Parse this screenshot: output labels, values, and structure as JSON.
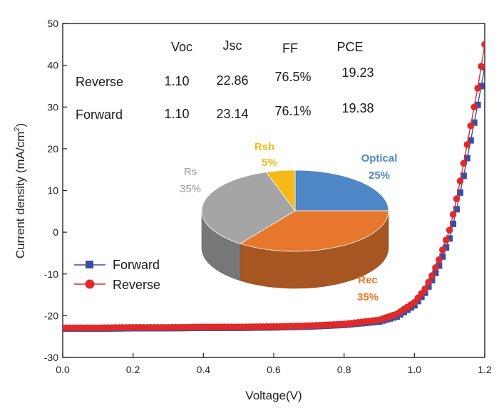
{
  "chart_data": [
    {
      "type": "scatter",
      "xlabel": "Voltage(V)",
      "ylabel_main": "Current density (mA/cm",
      "ylabel_sup": "2",
      "ylabel_close": ")",
      "xlim": [
        0.0,
        1.2
      ],
      "ylim": [
        -30,
        50
      ],
      "xticks": [
        "0.0",
        "0.2",
        "0.4",
        "0.6",
        "0.8",
        "1.0",
        "1.2"
      ],
      "yticks": [
        "-30",
        "-20",
        "-10",
        "0",
        "10",
        "20",
        "30",
        "40",
        "50"
      ],
      "grid": false,
      "legend_position": "bottom-left",
      "series": [
        {
          "name": "Forward",
          "color": "#3c4ea0",
          "marker": "square",
          "jsc": 23.14,
          "voc": 1.1,
          "points": [
            [
              0.0,
              -23.1
            ],
            [
              0.1,
              -23.1
            ],
            [
              0.2,
              -23.0
            ],
            [
              0.3,
              -23.0
            ],
            [
              0.4,
              -22.9
            ],
            [
              0.5,
              -22.9
            ],
            [
              0.6,
              -22.8
            ],
            [
              0.7,
              -22.6
            ],
            [
              0.8,
              -22.2
            ],
            [
              0.9,
              -21.4
            ],
            [
              0.95,
              -20.2
            ],
            [
              1.0,
              -17.5
            ],
            [
              1.03,
              -14.5
            ],
            [
              1.05,
              -11.5
            ],
            [
              1.07,
              -8.0
            ],
            [
              1.1,
              -1.5
            ],
            [
              1.12,
              5.5
            ],
            [
              1.14,
              13.5
            ],
            [
              1.16,
              22.0
            ],
            [
              1.18,
              30.5
            ],
            [
              1.2,
              39.5
            ]
          ]
        },
        {
          "name": "Reverse",
          "color": "#e02a2a",
          "marker": "circle",
          "jsc": 22.86,
          "voc": 1.1,
          "points": [
            [
              0.0,
              -22.9
            ],
            [
              0.1,
              -22.9
            ],
            [
              0.2,
              -22.8
            ],
            [
              0.3,
              -22.8
            ],
            [
              0.4,
              -22.7
            ],
            [
              0.5,
              -22.7
            ],
            [
              0.6,
              -22.6
            ],
            [
              0.7,
              -22.4
            ],
            [
              0.8,
              -22.0
            ],
            [
              0.9,
              -21.0
            ],
            [
              0.95,
              -19.6
            ],
            [
              1.0,
              -16.8
            ],
            [
              1.03,
              -13.6
            ],
            [
              1.05,
              -10.4
            ],
            [
              1.07,
              -6.6
            ],
            [
              1.1,
              0.5
            ],
            [
              1.12,
              8.0
            ],
            [
              1.14,
              16.5
            ],
            [
              1.16,
              25.5
            ],
            [
              1.18,
              34.5
            ],
            [
              1.2,
              45.0
            ]
          ]
        }
      ]
    },
    {
      "type": "pie",
      "slices": [
        {
          "name": "Optical",
          "value": 25,
          "label": "25%",
          "color": "#4f86c6"
        },
        {
          "name": "Rec",
          "value": 35,
          "label": "35%",
          "color": "#e8772e"
        },
        {
          "name": "Rs",
          "value": 35,
          "label": "35%",
          "color": "#a5a5a5"
        },
        {
          "name": "Rsh",
          "value": 5,
          "label": "5%",
          "color": "#f5b918"
        }
      ]
    },
    {
      "type": "table",
      "columns": [
        "Voc",
        "Jsc",
        "FF",
        "PCE"
      ],
      "rows": [
        {
          "label": "Reverse",
          "values": [
            "1.10",
            "22.86",
            "76.5%",
            "19.23"
          ]
        },
        {
          "label": "Forward",
          "values": [
            "1.10",
            "23.14",
            "76.1%",
            "19.38"
          ]
        }
      ]
    }
  ]
}
